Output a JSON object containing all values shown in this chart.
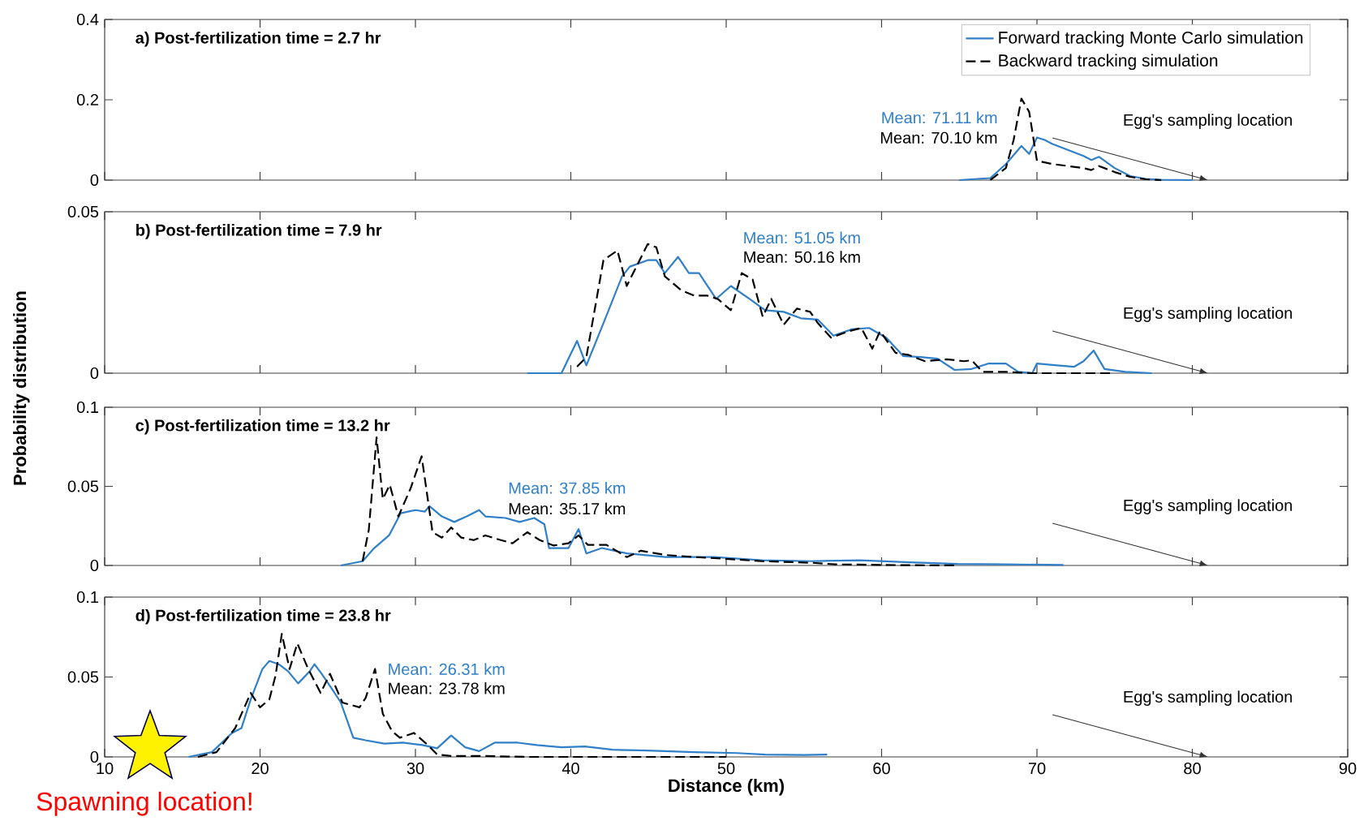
{
  "chart_data": [
    {
      "type": "line",
      "title": "a) Post-fertilization time = 2.7 hr",
      "xlim": [
        10,
        90
      ],
      "xticks": [
        10,
        20,
        30,
        40,
        50,
        60,
        70,
        80,
        90
      ],
      "ylim": [
        0,
        0.4
      ],
      "yticks": [
        0,
        0.2,
        0.4
      ],
      "tick_labels": "y",
      "legend": "top right",
      "series": [
        {
          "name": "Forward tracking Monte Carlo simulation",
          "color": "#2f7fc9",
          "line_style": "solid",
          "x": [
            65,
            67,
            68,
            69,
            69.5,
            70,
            70.5,
            71,
            72,
            73,
            73.5,
            74,
            75,
            76,
            77,
            78,
            80
          ],
          "values": [
            0,
            0.005,
            0.04,
            0.085,
            0.065,
            0.106,
            0.1,
            0.09,
            0.075,
            0.06,
            0.05,
            0.058,
            0.03,
            0.01,
            0.003,
            0.001,
            0
          ]
        },
        {
          "name": "Backward tracking simulation",
          "color": "#000000",
          "line_style": "dashed",
          "x": [
            67,
            68,
            68.5,
            69,
            69.5,
            70,
            71,
            72,
            73,
            73.5,
            74,
            75,
            76,
            77,
            78
          ],
          "values": [
            0,
            0.03,
            0.1,
            0.203,
            0.17,
            0.048,
            0.04,
            0.035,
            0.03,
            0.025,
            0.035,
            0.02,
            0.008,
            0.002,
            0
          ]
        }
      ],
      "annotations": [
        "Mean: 71.11 km",
        "Mean: 70.10 km",
        "Egg's sampling location"
      ]
    },
    {
      "type": "line",
      "title": "b) Post-fertilization time = 7.9 hr",
      "ylabel": "Probability distribution",
      "xlim": [
        10,
        90
      ],
      "xticks": [
        10,
        20,
        30,
        40,
        50,
        60,
        70,
        80,
        90
      ],
      "ylim": [
        0,
        0.05
      ],
      "yticks": [
        0,
        0.05
      ],
      "tick_labels": "y",
      "series": [
        {
          "color": "#2f7fc9",
          "line_style": "solid",
          "x": [
            37.2,
            39.4,
            40.4,
            41,
            42.1,
            43.3,
            43.8,
            44.95,
            45.5,
            46.05,
            46.9,
            47.6,
            48.25,
            49.35,
            50.3,
            51.5,
            52.5,
            53.7,
            54.8,
            55.9,
            56.9,
            58.1,
            59.2,
            60.3,
            61.4,
            62.5,
            63.6,
            64.7,
            65.8,
            66.9,
            68,
            68.8,
            69.7,
            70,
            71.3,
            72.4,
            73,
            73.65,
            74.35,
            75.7,
            77.4
          ],
          "values": [
            0,
            0,
            0.01,
            0.0024,
            0.0155,
            0.03,
            0.033,
            0.035,
            0.035,
            0.031,
            0.036,
            0.031,
            0.031,
            0.023,
            0.027,
            0.023,
            0.0195,
            0.019,
            0.017,
            0.0166,
            0.0116,
            0.0136,
            0.014,
            0.011,
            0.0053,
            0.005,
            0.0045,
            0.001,
            0.0013,
            0.003,
            0.003,
            0.0004,
            0,
            0.003,
            0.0024,
            0.002,
            0.0037,
            0.007,
            0.0013,
            0.0004,
            0
          ]
        },
        {
          "color": "#000000",
          "line_style": "dashed",
          "x": [
            40.4,
            41,
            42.1,
            43,
            43.6,
            44.95,
            45.5,
            46.05,
            47.1,
            47.95,
            48.8,
            49.45,
            50.3,
            51,
            51.7,
            52.35,
            52.9,
            53.7,
            54.55,
            55.4,
            55.9,
            56.75,
            57.9,
            58.7,
            59.4,
            59.9,
            60.9,
            61.7,
            62.8,
            64.2,
            65.3,
            65.8,
            66.5,
            68,
            69.7,
            75
          ],
          "values": [
            0.002,
            0.005,
            0.035,
            0.038,
            0.027,
            0.04,
            0.039,
            0.03,
            0.0257,
            0.024,
            0.024,
            0.023,
            0.0195,
            0.031,
            0.029,
            0.0175,
            0.023,
            0.015,
            0.02,
            0.019,
            0.0155,
            0.011,
            0.013,
            0.014,
            0.0076,
            0.013,
            0.0063,
            0.0057,
            0.0037,
            0.0043,
            0.0037,
            0.004,
            0.0004,
            0.0004,
            0,
            0
          ]
        }
      ],
      "annotations": [
        "Mean: 51.05 km",
        "Mean: 50.16 km",
        "Egg's sampling location"
      ]
    },
    {
      "type": "line",
      "title": "c) Post-fertilization time = 13.2 hr",
      "xlim": [
        10,
        90
      ],
      "xticks": [
        10,
        20,
        30,
        40,
        50,
        60,
        70,
        80,
        90
      ],
      "ylim": [
        0,
        0.1
      ],
      "yticks": [
        0,
        0.05,
        0.1
      ],
      "tick_labels": "y",
      "series": [
        {
          "color": "#2f7fc9",
          "line_style": "solid",
          "x": [
            25.2,
            26.6,
            27.35,
            28.3,
            29.05,
            30,
            30.6,
            30.9,
            31.7,
            32.5,
            33.3,
            34.1,
            34.5,
            35.8,
            36.7,
            37.65,
            38.3,
            38.6,
            39.85,
            40.5,
            41,
            42,
            43.6,
            46.1,
            49.2,
            52.3,
            55.5,
            58.6,
            61.8,
            64.9,
            68,
            71.7
          ],
          "values": [
            0,
            0.0027,
            0.011,
            0.019,
            0.033,
            0.035,
            0.034,
            0.0375,
            0.031,
            0.0275,
            0.031,
            0.035,
            0.031,
            0.03,
            0.0275,
            0.03,
            0.026,
            0.011,
            0.011,
            0.023,
            0.0076,
            0.011,
            0.0076,
            0.0053,
            0.0053,
            0.0033,
            0.0027,
            0.0033,
            0.002,
            0.001,
            0.0007,
            0.0003
          ]
        },
        {
          "color": "#000000",
          "line_style": "dashed",
          "x": [
            26.6,
            27,
            27.5,
            27.9,
            28.35,
            28.9,
            29.7,
            30.4,
            31.1,
            31.7,
            32.3,
            32.95,
            33.75,
            34.5,
            35.5,
            36.25,
            37.2,
            38,
            38.9,
            39.85,
            40.5,
            41.1,
            42.3,
            43.6,
            44.5,
            46.1,
            48,
            49.8,
            52.3,
            55.5,
            57,
            60.2,
            64.9
          ],
          "values": [
            0.0027,
            0.0226,
            0.081,
            0.042,
            0.051,
            0.031,
            0.049,
            0.069,
            0.021,
            0.0176,
            0.024,
            0.0176,
            0.016,
            0.019,
            0.016,
            0.014,
            0.021,
            0.016,
            0.0126,
            0.014,
            0.019,
            0.013,
            0.013,
            0.0053,
            0.0093,
            0.0066,
            0.0053,
            0.0043,
            0.0027,
            0.0017,
            0.0007,
            0.0003,
            0
          ]
        }
      ],
      "annotations": [
        "Mean: 37.85 km",
        "Mean: 35.17 km",
        "Egg's sampling location"
      ]
    },
    {
      "type": "line",
      "title": "d) Post-fertilization time = 23.8 hr",
      "xlabel": "Distance (km)",
      "xlim": [
        10,
        90
      ],
      "xticks": [
        10,
        20,
        30,
        40,
        50,
        60,
        70,
        80,
        90
      ],
      "ylim": [
        0,
        0.1
      ],
      "yticks": [
        0,
        0.05,
        0.1
      ],
      "series": [
        {
          "color": "#2f7fc9",
          "line_style": "solid",
          "x": [
            15.4,
            16.9,
            18.2,
            18.8,
            19.4,
            20.15,
            20.6,
            21.2,
            21.8,
            22.45,
            23.2,
            23.5,
            23.97,
            24.6,
            25.2,
            26,
            26.8,
            28,
            29.2,
            30.45,
            31.4,
            32.3,
            33.2,
            34.1,
            35.1,
            36.6,
            37.8,
            39.4,
            40.9,
            42.7,
            44.9,
            47.9,
            50.7,
            52.5,
            55,
            56.5
          ],
          "values": [
            0,
            0.003,
            0.015,
            0.018,
            0.036,
            0.055,
            0.06,
            0.058,
            0.0536,
            0.046,
            0.0536,
            0.058,
            0.052,
            0.043,
            0.034,
            0.012,
            0.0104,
            0.0083,
            0.0089,
            0.0074,
            0.0054,
            0.0134,
            0.006,
            0.0036,
            0.0089,
            0.0089,
            0.0074,
            0.006,
            0.0065,
            0.0045,
            0.004,
            0.003,
            0.0024,
            0.0015,
            0.0012,
            0.0015
          ]
        },
        {
          "color": "#000000",
          "line_style": "dashed",
          "x": [
            16,
            17.2,
            18.4,
            19.4,
            20,
            20.6,
            21,
            21.4,
            21.9,
            22.4,
            23.1,
            23.9,
            24.5,
            25.3,
            26.4,
            26.8,
            27.4,
            27.9,
            28.5,
            29,
            29.9,
            30.8,
            31.4,
            32.3,
            34.1,
            37.2,
            50
          ],
          "values": [
            0,
            0.003,
            0.018,
            0.04,
            0.031,
            0.036,
            0.051,
            0.077,
            0.055,
            0.071,
            0.055,
            0.04,
            0.052,
            0.034,
            0.031,
            0.037,
            0.055,
            0.027,
            0.016,
            0.012,
            0.015,
            0.0074,
            0.0015,
            0.0006,
            0.0006,
            0,
            0
          ]
        }
      ],
      "annotations": [
        "Mean: 26.31 km",
        "Mean: 23.78 km",
        "Egg's sampling location",
        "Spawning location!"
      ]
    }
  ]
}
